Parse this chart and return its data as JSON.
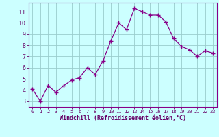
{
  "x": [
    0,
    1,
    2,
    3,
    4,
    5,
    6,
    7,
    8,
    9,
    10,
    11,
    12,
    13,
    14,
    15,
    16,
    17,
    18,
    19,
    20,
    21,
    22,
    23
  ],
  "y": [
    4.1,
    3.0,
    4.4,
    3.8,
    4.4,
    4.9,
    5.1,
    6.0,
    5.4,
    6.6,
    8.4,
    10.0,
    9.4,
    11.3,
    11.0,
    10.7,
    10.7,
    10.1,
    8.6,
    7.9,
    7.6,
    7.0,
    7.5,
    7.3
  ],
  "line_color": "#880088",
  "marker": "+",
  "marker_size": 4,
  "bg_color": "#ccffff",
  "grid_color": "#99cccc",
  "axis_label_color": "#660066",
  "tick_color": "#660066",
  "xlabel": "Windchill (Refroidissement éolien,°C)",
  "ylabel_ticks": [
    3,
    4,
    5,
    6,
    7,
    8,
    9,
    10,
    11
  ],
  "xlim": [
    -0.5,
    23.5
  ],
  "ylim": [
    2.5,
    11.8
  ],
  "spine_color": "#880088"
}
